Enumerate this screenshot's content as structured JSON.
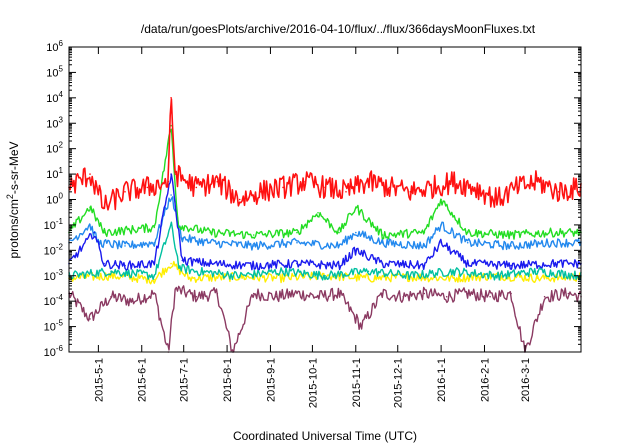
{
  "chart_data": {
    "type": "line",
    "title": "/data/run/goesPlots/archive/2016-04-10/flux/../flux/366daysMoonFluxes.txt",
    "xlabel": "Coordinated Universal Time (UTC)",
    "ylabel": "protons/cm2-s-sr-MeV",
    "ylabel_parts": {
      "before": "protons/cm",
      "sup": "2",
      "after": "-s-sr-MeV"
    },
    "x_start": "2015-04-10",
    "x_end": "2016-04-10",
    "x_ticks": [
      "2015-5-1",
      "2015-6-1",
      "2015-7-1",
      "2015-8-1",
      "2015-9-1",
      "2015-10-1",
      "2015-11-1",
      "2015-12-1",
      "2016-1-1",
      "2016-2-1",
      "2016-3-1"
    ],
    "y_scale": "log",
    "y_ticks": [
      {
        "base": "10",
        "exp": "-6"
      },
      {
        "base": "10",
        "exp": "-5"
      },
      {
        "base": "10",
        "exp": "-4"
      },
      {
        "base": "10",
        "exp": "-3"
      },
      {
        "base": "10",
        "exp": "-2"
      },
      {
        "base": "10",
        "exp": "-1"
      },
      {
        "base": "10",
        "exp": "0"
      },
      {
        "base": "10",
        "exp": "1"
      },
      {
        "base": "10",
        "exp": "2"
      },
      {
        "base": "10",
        "exp": "3"
      },
      {
        "base": "10",
        "exp": "4"
      },
      {
        "base": "10",
        "exp": "5"
      },
      {
        "base": "10",
        "exp": "6"
      }
    ],
    "ylim": [
      1e-06,
      1000000.0
    ],
    "grid": false,
    "legend": "none",
    "series": [
      {
        "color": "#8b3a62",
        "points": [
          [
            "2015-04-10",
            0.0002
          ],
          [
            "2015-04-25",
            2e-05
          ],
          [
            "2015-05-10",
            0.00015
          ],
          [
            "2015-05-25",
            0.0001
          ],
          [
            "2015-06-10",
            0.0002
          ],
          [
            "2015-06-20",
            1e-06
          ],
          [
            "2015-06-25",
            0.0003
          ],
          [
            "2015-07-10",
            0.00015
          ],
          [
            "2015-07-25",
            0.0002
          ],
          [
            "2015-08-05",
            1e-06
          ],
          [
            "2015-08-20",
            0.0002
          ],
          [
            "2015-09-05",
            0.00015
          ],
          [
            "2015-09-20",
            0.0002
          ],
          [
            "2015-10-05",
            0.00015
          ],
          [
            "2015-10-20",
            0.0002
          ],
          [
            "2015-11-05",
            1e-05
          ],
          [
            "2015-11-20",
            0.0002
          ],
          [
            "2015-12-05",
            0.00015
          ],
          [
            "2015-12-20",
            0.0002
          ],
          [
            "2016-01-05",
            0.00015
          ],
          [
            "2016-01-20",
            0.0002
          ],
          [
            "2016-02-05",
            0.00015
          ],
          [
            "2016-02-20",
            0.0002
          ],
          [
            "2016-03-01",
            1e-06
          ],
          [
            "2016-03-15",
            0.00015
          ],
          [
            "2016-04-01",
            0.0002
          ],
          [
            "2016-04-10",
            0.00015
          ]
        ]
      },
      {
        "color": "#ffee00",
        "points": [
          [
            "2015-04-10",
            0.0008
          ],
          [
            "2015-05-10",
            0.001
          ],
          [
            "2015-06-10",
            0.0007
          ],
          [
            "2015-06-22",
            0.003
          ],
          [
            "2015-07-05",
            0.0008
          ],
          [
            "2015-08-10",
            0.0009
          ],
          [
            "2015-09-10",
            0.0008
          ],
          [
            "2015-10-10",
            0.001
          ],
          [
            "2015-11-10",
            0.0008
          ],
          [
            "2015-12-10",
            0.0009
          ],
          [
            "2016-01-10",
            0.0008
          ],
          [
            "2016-02-10",
            0.001
          ],
          [
            "2016-03-10",
            0.0008
          ],
          [
            "2016-04-10",
            0.0009
          ]
        ]
      },
      {
        "color": "#00c0a0",
        "points": [
          [
            "2015-04-10",
            0.001
          ],
          [
            "2015-05-10",
            0.0015
          ],
          [
            "2015-06-10",
            0.001
          ],
          [
            "2015-06-22",
            0.1
          ],
          [
            "2015-06-28",
            0.002
          ],
          [
            "2015-07-10",
            0.0015
          ],
          [
            "2015-08-10",
            0.001
          ],
          [
            "2015-09-10",
            0.0015
          ],
          [
            "2015-10-10",
            0.001
          ],
          [
            "2015-11-10",
            0.0015
          ],
          [
            "2015-12-10",
            0.001
          ],
          [
            "2016-01-10",
            0.0015
          ],
          [
            "2016-02-10",
            0.001
          ],
          [
            "2016-03-10",
            0.0015
          ],
          [
            "2016-04-10",
            0.001
          ]
        ]
      },
      {
        "color": "#2288ee",
        "points": [
          [
            "2015-04-10",
            0.02
          ],
          [
            "2015-04-25",
            0.1
          ],
          [
            "2015-05-01",
            0.02
          ],
          [
            "2015-05-20",
            0.015
          ],
          [
            "2015-06-10",
            0.02
          ],
          [
            "2015-06-22",
            1.5
          ],
          [
            "2015-06-30",
            0.03
          ],
          [
            "2015-07-20",
            0.02
          ],
          [
            "2015-08-20",
            0.015
          ],
          [
            "2015-09-20",
            0.02
          ],
          [
            "2015-10-20",
            0.015
          ],
          [
            "2015-11-01",
            0.05
          ],
          [
            "2015-11-20",
            0.02
          ],
          [
            "2015-12-20",
            0.015
          ],
          [
            "2016-01-01",
            0.1
          ],
          [
            "2016-01-20",
            0.02
          ],
          [
            "2016-02-20",
            0.015
          ],
          [
            "2016-03-20",
            0.02
          ],
          [
            "2016-04-10",
            0.02
          ]
        ]
      },
      {
        "color": "#22dd22",
        "points": [
          [
            "2015-04-10",
            0.05
          ],
          [
            "2015-04-25",
            0.5
          ],
          [
            "2015-05-05",
            0.05
          ],
          [
            "2015-06-10",
            0.08
          ],
          [
            "2015-06-22",
            800
          ],
          [
            "2015-06-27",
            0.1
          ],
          [
            "2015-07-20",
            0.05
          ],
          [
            "2015-08-20",
            0.04
          ],
          [
            "2015-09-20",
            0.05
          ],
          [
            "2015-10-05",
            0.3
          ],
          [
            "2015-10-20",
            0.05
          ],
          [
            "2015-11-01",
            0.5
          ],
          [
            "2015-11-20",
            0.04
          ],
          [
            "2015-12-20",
            0.05
          ],
          [
            "2016-01-01",
            1.0
          ],
          [
            "2016-01-20",
            0.05
          ],
          [
            "2016-02-20",
            0.04
          ],
          [
            "2016-03-20",
            0.05
          ],
          [
            "2016-04-10",
            0.05
          ]
        ]
      },
      {
        "color": "#1a1aee",
        "points": [
          [
            "2015-04-10",
            0.003
          ],
          [
            "2015-04-28",
            0.05
          ],
          [
            "2015-05-05",
            0.003
          ],
          [
            "2015-05-20",
            0.0025
          ],
          [
            "2015-06-10",
            0.003
          ],
          [
            "2015-06-22",
            10
          ],
          [
            "2015-06-30",
            0.004
          ],
          [
            "2015-07-20",
            0.003
          ],
          [
            "2015-08-20",
            0.0025
          ],
          [
            "2015-09-20",
            0.003
          ],
          [
            "2015-10-20",
            0.0025
          ],
          [
            "2015-11-01",
            0.01
          ],
          [
            "2015-11-20",
            0.003
          ],
          [
            "2015-12-20",
            0.0025
          ],
          [
            "2016-01-01",
            0.02
          ],
          [
            "2016-01-20",
            0.003
          ],
          [
            "2016-02-20",
            0.0025
          ],
          [
            "2016-03-20",
            0.003
          ],
          [
            "2016-04-10",
            0.003
          ]
        ]
      },
      {
        "color": "#ff1111",
        "points": [
          [
            "2015-04-10",
            3
          ],
          [
            "2015-04-25",
            10
          ],
          [
            "2015-05-05",
            0.5
          ],
          [
            "2015-05-20",
            2
          ],
          [
            "2015-06-05",
            3
          ],
          [
            "2015-06-20",
            5
          ],
          [
            "2015-06-22",
            10000.0
          ],
          [
            "2015-06-25",
            10
          ],
          [
            "2015-07-10",
            3
          ],
          [
            "2015-07-25",
            5
          ],
          [
            "2015-08-10",
            1
          ],
          [
            "2015-08-25",
            2
          ],
          [
            "2015-09-10",
            3
          ],
          [
            "2015-09-25",
            5
          ],
          [
            "2015-10-10",
            3
          ],
          [
            "2015-10-25",
            2
          ],
          [
            "2015-11-10",
            5
          ],
          [
            "2015-11-25",
            3
          ],
          [
            "2015-12-10",
            2
          ],
          [
            "2015-12-25",
            3
          ],
          [
            "2016-01-10",
            5
          ],
          [
            "2016-01-25",
            3
          ],
          [
            "2016-02-10",
            1
          ],
          [
            "2016-02-25",
            3
          ],
          [
            "2016-03-10",
            5
          ],
          [
            "2016-03-25",
            2
          ],
          [
            "2016-04-10",
            3
          ]
        ]
      }
    ]
  }
}
